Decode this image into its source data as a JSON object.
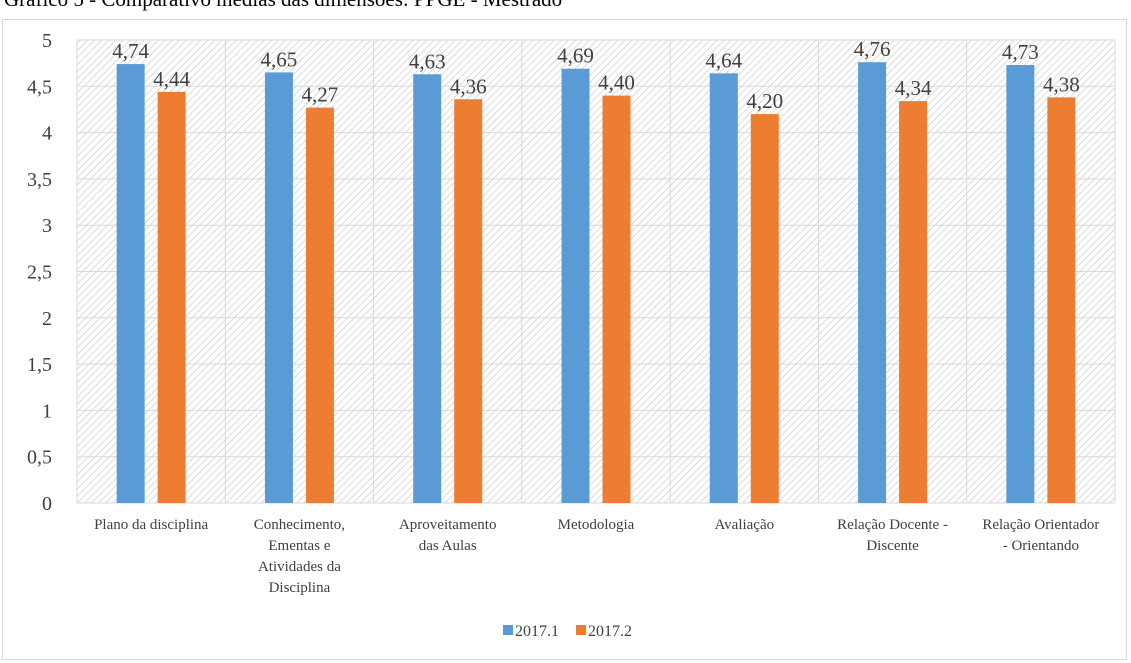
{
  "title": "Gráfico 5 - Comparativo médias das dimensões: PPGE - Mestrado",
  "chart_data": {
    "type": "bar",
    "title": "Gráfico 5 - Comparativo médias das dimensões: PPGE - Mestrado",
    "categories": [
      [
        "Plano da disciplina"
      ],
      [
        "Conhecimento,",
        "Ementas e",
        "Atividades da",
        "Disciplina"
      ],
      [
        "Aproveitamento",
        "das Aulas"
      ],
      [
        "Metodologia"
      ],
      [
        "Avaliação"
      ],
      [
        "Relação Docente -",
        "Discente"
      ],
      [
        "Relação Orientador",
        "- Orientando"
      ]
    ],
    "series": [
      {
        "name": "2017.1",
        "color": "#5b9bd5",
        "values": [
          4.74,
          4.65,
          4.63,
          4.69,
          4.64,
          4.76,
          4.73
        ],
        "labels": [
          "4,74",
          "4,65",
          "4,63",
          "4,69",
          "4,64",
          "4,76",
          "4,73"
        ]
      },
      {
        "name": "2017.2",
        "color": "#ed7d31",
        "values": [
          4.44,
          4.27,
          4.36,
          4.4,
          4.2,
          4.34,
          4.38
        ],
        "labels": [
          "4,44",
          "4,27",
          "4,36",
          "4,40",
          "4,20",
          "4,34",
          "4,38"
        ]
      }
    ],
    "ylim": [
      0,
      5
    ],
    "yticks": [
      0,
      0.5,
      1,
      1.5,
      2,
      2.5,
      3,
      3.5,
      4,
      4.5,
      5
    ],
    "ytick_labels": [
      "0",
      "0,5",
      "1",
      "1,5",
      "2",
      "2,5",
      "3",
      "3,5",
      "4",
      "4,5",
      "5"
    ],
    "grid": true,
    "legend_position": "bottom"
  }
}
